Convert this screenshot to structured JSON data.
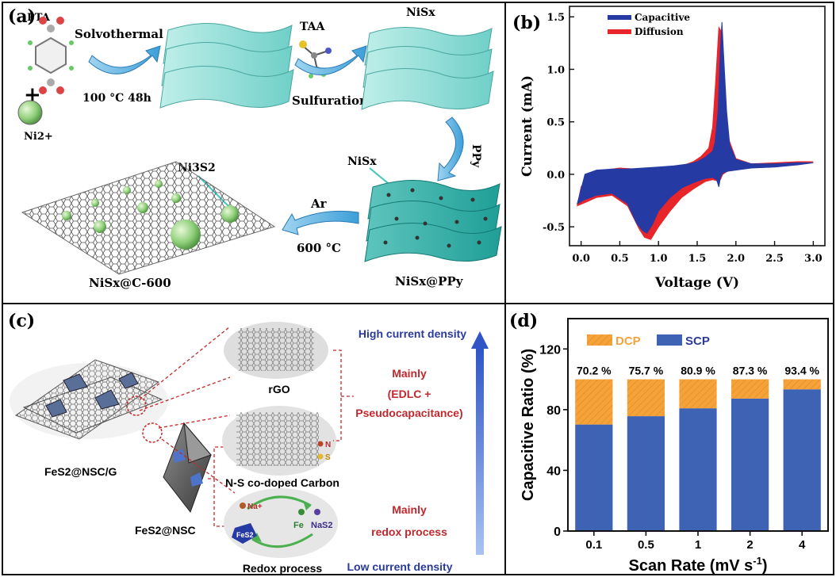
{
  "figure": {
    "panel_labels": [
      "(a)",
      "(b)",
      "(c)",
      "(d)"
    ]
  },
  "panel_a": {
    "pta": "PTA",
    "plus": "+",
    "ni_ion": "Ni2+",
    "solvothermal": "Solvothermal",
    "solvo_conditions": "100 °C  48h",
    "taa": "TAA",
    "sulfuration": "Sulfuration",
    "nisx_top": "NiSx",
    "ppy": "PPy",
    "nisx_mid": "NiSx",
    "nisx_ppy": "NiSx@PPy",
    "ar": "Ar",
    "temp": "600 °C",
    "ni3s2": "Ni3S2",
    "nisx_c": "NiSx@C-600"
  },
  "panel_c": {
    "rgo": "rGO",
    "nsc": "N-S co-doped Carbon",
    "fes2_nscg": "FeS2@NSC/G",
    "fes2_nsc": "FeS2@NSC",
    "redox_process": "Redox process",
    "high_current": "High current density",
    "low_current": "Low current density",
    "mainly_1": "Mainly",
    "edlc": "(EDLC +",
    "pseudo": "Pseudocapacitance)",
    "mainly_2": "Mainly",
    "redox_label": "redox process",
    "n_label": "N",
    "s_label": "S",
    "na_label": "Na+",
    "fe_label": "Fe",
    "nas2_label": "NaS2",
    "fes2_small": "FeS2",
    "colors": {
      "red_text": "#c0282d",
      "blue_text": "#2a3a9c",
      "arrow": "#3a5fcd"
    }
  },
  "chart_data": [
    {
      "id": "b",
      "type": "area",
      "xlabel": "Voltage (V)",
      "ylabel": "Current (mA)",
      "xlim": [
        -0.15,
        3.15
      ],
      "ylim": [
        -0.68,
        1.6
      ],
      "xticks": [
        0.0,
        0.5,
        1.0,
        1.5,
        2.0,
        2.5,
        3.0
      ],
      "xtick_labels": [
        "0.0",
        "0.5",
        "1.0",
        "1.5",
        "2.0",
        "2.5",
        "3.0"
      ],
      "yticks": [
        -0.5,
        0.0,
        0.5,
        1.0,
        1.5
      ],
      "ytick_labels": [
        "-0.5",
        "0.0",
        "0.5",
        "1.0",
        "1.5"
      ],
      "legend_position": "top-left",
      "series": [
        {
          "name": "Diffusion",
          "color": "#e8252a",
          "x": [
            -0.05,
            0.05,
            0.2,
            0.4,
            0.6,
            0.75,
            0.82,
            0.9,
            1.0,
            1.15,
            1.3,
            1.45,
            1.6,
            1.7,
            1.75,
            1.8,
            1.83,
            1.87,
            1.92,
            2.0,
            2.2,
            2.5,
            2.8,
            3.0,
            3.0,
            2.8,
            2.5,
            2.2,
            2.0,
            1.9,
            1.85,
            1.82,
            1.78,
            1.74,
            1.7,
            1.65,
            1.55,
            1.45,
            1.3,
            1.1,
            0.9,
            0.7,
            0.5,
            0.3,
            0.1,
            0.0,
            -0.05
          ],
          "y": [
            -0.3,
            -0.27,
            -0.22,
            -0.2,
            -0.3,
            -0.52,
            -0.6,
            -0.62,
            -0.5,
            -0.35,
            -0.22,
            -0.14,
            -0.07,
            -0.05,
            -0.06,
            -0.05,
            0.0,
            0.02,
            0.04,
            0.05,
            0.07,
            0.08,
            0.1,
            0.12,
            0.12,
            0.12,
            0.11,
            0.1,
            0.15,
            0.35,
            0.8,
            1.35,
            1.4,
            0.9,
            0.45,
            0.25,
            0.17,
            0.12,
            0.08,
            0.07,
            0.06,
            0.05,
            0.06,
            0.04,
            0.0,
            -0.12,
            -0.3
          ]
        },
        {
          "name": "Capacitive",
          "color": "#263aa3",
          "x": [
            -0.05,
            0.05,
            0.2,
            0.4,
            0.6,
            0.72,
            0.8,
            0.85,
            0.92,
            1.0,
            1.15,
            1.3,
            1.45,
            1.6,
            1.7,
            1.75,
            1.78,
            1.8,
            1.82,
            1.85,
            1.9,
            2.0,
            2.2,
            2.5,
            2.8,
            3.0,
            3.0,
            2.8,
            2.5,
            2.2,
            2.0,
            1.92,
            1.88,
            1.84,
            1.82,
            1.8,
            1.77,
            1.73,
            1.7,
            1.6,
            1.5,
            1.4,
            1.2,
            1.0,
            0.8,
            0.6,
            0.4,
            0.2,
            0.05,
            -0.05
          ],
          "y": [
            -0.28,
            -0.24,
            -0.2,
            -0.18,
            -0.28,
            -0.47,
            -0.54,
            -0.56,
            -0.48,
            -0.35,
            -0.22,
            -0.13,
            -0.08,
            -0.04,
            -0.03,
            -0.05,
            -0.12,
            -0.03,
            0.0,
            0.02,
            0.03,
            0.04,
            0.06,
            0.07,
            0.09,
            0.11,
            0.11,
            0.11,
            0.1,
            0.1,
            0.14,
            0.28,
            0.6,
            1.15,
            1.45,
            1.2,
            0.6,
            0.3,
            0.22,
            0.16,
            0.12,
            0.1,
            0.08,
            0.07,
            0.06,
            0.05,
            0.05,
            0.04,
            0.0,
            -0.28
          ]
        }
      ]
    },
    {
      "id": "d",
      "type": "bar",
      "xlabel": "Scan Rate (mV s-1)",
      "ylabel": "Capacitive Ratio (%)",
      "ylim": [
        0,
        140
      ],
      "yticks": [
        0,
        40,
        80,
        120
      ],
      "categories": [
        "0.1",
        "0.5",
        "1",
        "2",
        "4"
      ],
      "legend_position": "top-left",
      "data_labels": [
        "70.2 %",
        "75.7 %",
        "80.9 %",
        "87.3 %",
        "93.4 %"
      ],
      "series": [
        {
          "name": "SCP",
          "color": "#3f63b4",
          "values": [
            70.2,
            75.7,
            80.9,
            87.3,
            93.4
          ]
        },
        {
          "name": "DCP",
          "color": "#f5a23a",
          "values": [
            29.8,
            24.3,
            19.1,
            12.7,
            6.6
          ]
        }
      ]
    }
  ]
}
